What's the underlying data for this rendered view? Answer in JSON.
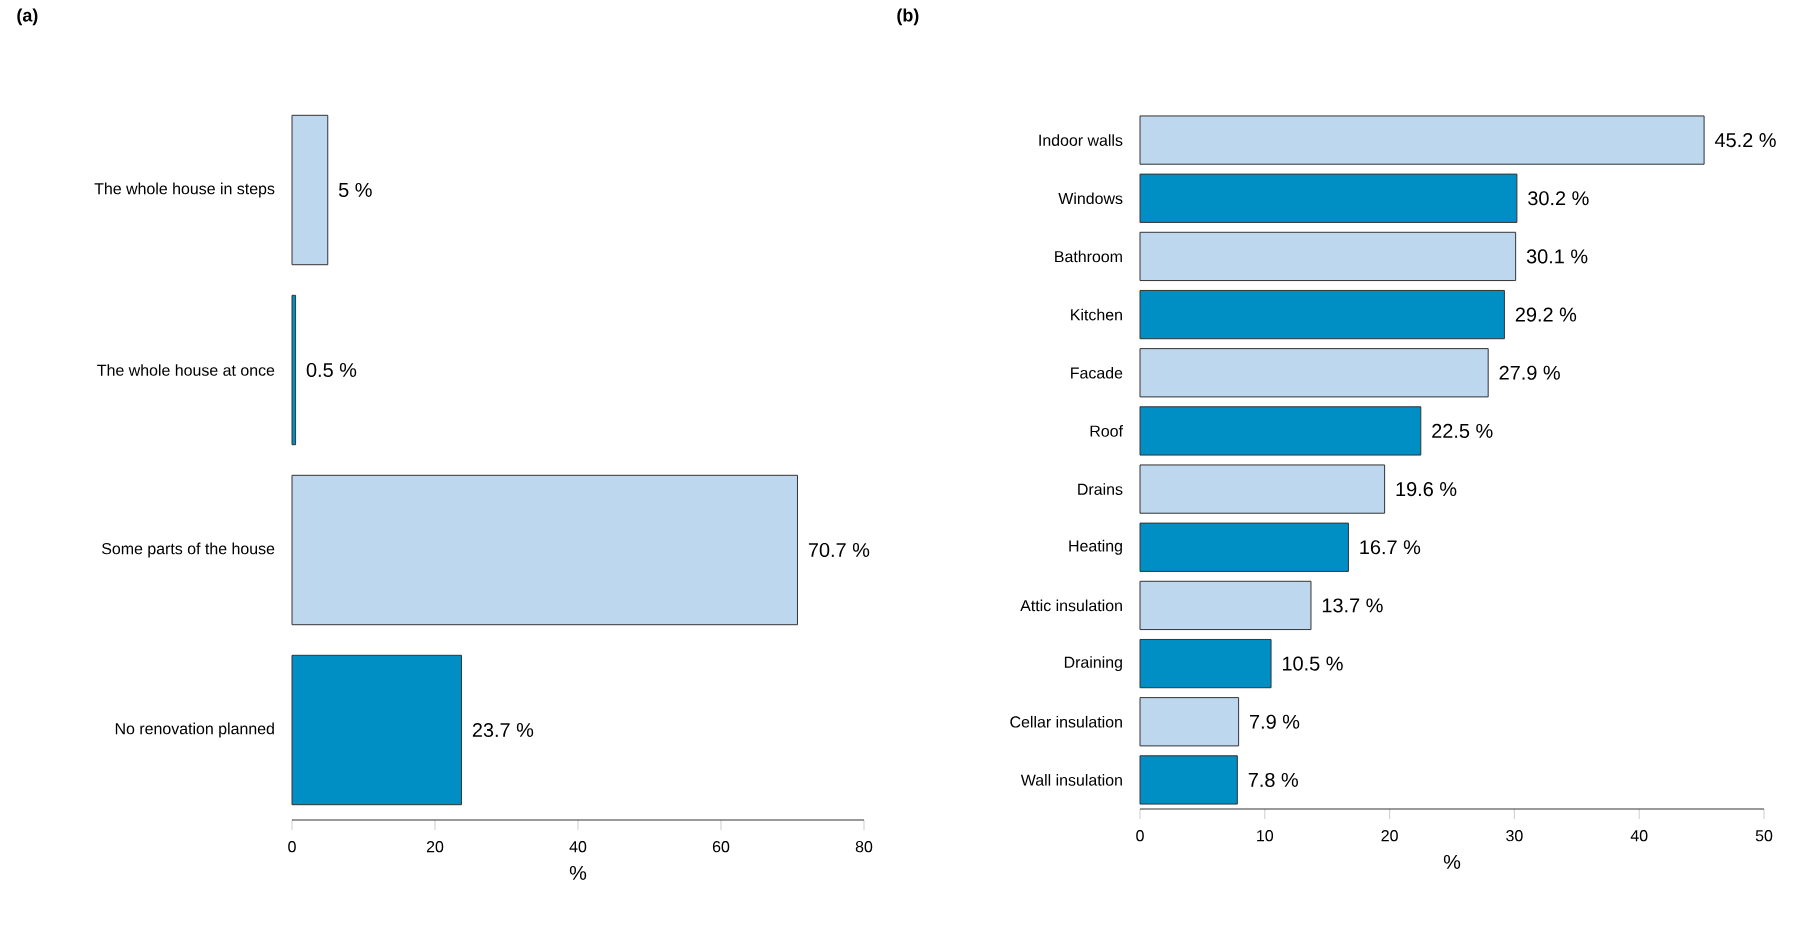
{
  "chart_data": [
    {
      "type": "bar",
      "orientation": "horizontal",
      "title": "(a)",
      "xlabel": "%",
      "categories": [
        "The whole house in steps",
        "The whole house at once",
        "Some parts of the house",
        "No renovation planned"
      ],
      "values": [
        5,
        0.5,
        70.7,
        23.7
      ],
      "colors": [
        "#bdd7ee",
        "#008fc4",
        "#bdd7ee",
        "#008fc4"
      ],
      "value_labels": [
        "5 %",
        "0.5 %",
        "70.7 %",
        "23.7 %"
      ],
      "xlim": [
        0,
        80
      ],
      "xticks": [
        0,
        20,
        40,
        60,
        80
      ]
    },
    {
      "type": "bar",
      "orientation": "horizontal",
      "title": "(b)",
      "xlabel": "%",
      "categories": [
        "Indoor walls",
        "Windows",
        "Bathroom",
        "Kitchen",
        "Facade",
        "Roof",
        "Drains",
        "Heating",
        "Attic insulation",
        "Draining",
        "Cellar insulation",
        "Wall insulation"
      ],
      "values": [
        45.2,
        30.2,
        30.1,
        29.2,
        27.9,
        22.5,
        19.6,
        16.7,
        13.7,
        10.5,
        7.9,
        7.8
      ],
      "colors": [
        "#bdd7ee",
        "#008fc4",
        "#bdd7ee",
        "#008fc4",
        "#bdd7ee",
        "#008fc4",
        "#bdd7ee",
        "#008fc4",
        "#bdd7ee",
        "#008fc4",
        "#bdd7ee",
        "#008fc4"
      ],
      "value_labels": [
        "45.2 %",
        "30.2 %",
        "30.1 %",
        "29.2 %",
        "27.9 %",
        "22.5 %",
        "19.6 %",
        "16.7 %",
        "13.7 %",
        "10.5 %",
        "7.9 %",
        "7.8 %"
      ],
      "xlim": [
        0,
        50
      ],
      "xticks": [
        0,
        10,
        20,
        30,
        40,
        50
      ]
    }
  ]
}
